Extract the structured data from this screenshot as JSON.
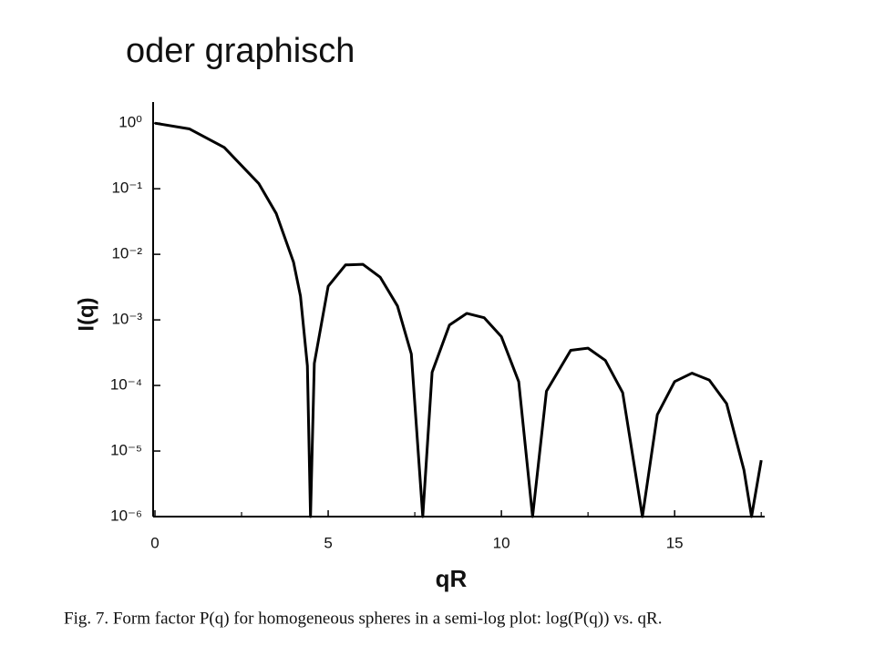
{
  "heading": "oder graphisch",
  "caption": "Fig. 7. Form factor P(q) for homogeneous spheres in a semi-log plot: log(P(q)) vs. qR.",
  "chart_data": {
    "type": "line",
    "x_label": "qR",
    "y_label": "I(q)",
    "log_y": true,
    "color": "#000000",
    "x": [
      0,
      1,
      2,
      3,
      3.5,
      4,
      4.2,
      4.4,
      4.49,
      4.6,
      5,
      5.5,
      6,
      6.5,
      7,
      7.4,
      7.73,
      8,
      8.5,
      9,
      9.5,
      10,
      10.5,
      10.9,
      11.3,
      12,
      12.5,
      13,
      13.5,
      14.07,
      14.5,
      15,
      15.5,
      16,
      16.5,
      17,
      17.22,
      17.5
    ],
    "values": [
      1,
      0.8165,
      0.4265,
      0.1195,
      0.04195,
      0.00758,
      0.00231,
      0.000199,
      1e-06,
      0.000217,
      0.00326,
      0.00689,
      0.00704,
      0.00449,
      0.00163,
      0.000302,
      1e-06,
      0.000159,
      0.000835,
      0.001256,
      0.001081,
      0.000554,
      0.000114,
      1e-06,
      8.16e-05,
      0.000343,
      0.000371,
      0.000241,
      7.77e-05,
      1e-06,
      3.58e-05,
      0.0001146,
      0.000154,
      0.000121,
      5.28e-05,
      5.15e-06,
      1e-06,
      7.25e-06
    ],
    "xlim": [
      0,
      17.6
    ],
    "ylim": [
      1e-06,
      2.1
    ],
    "xticks": [
      0,
      5,
      10,
      15
    ],
    "xminor_ticks": [
      2.5,
      7.5,
      12.5,
      17.5
    ],
    "yticks": [
      {
        "value": 1,
        "label": "10⁰"
      },
      {
        "value": 0.1,
        "label": "10⁻¹"
      },
      {
        "value": 0.01,
        "label": "10⁻²"
      },
      {
        "value": 0.001,
        "label": "10⁻³"
      },
      {
        "value": 0.0001,
        "label": "10⁻⁴"
      },
      {
        "value": 1e-05,
        "label": "10⁻⁵"
      },
      {
        "value": 1e-06,
        "label": "10⁻⁶"
      }
    ]
  }
}
